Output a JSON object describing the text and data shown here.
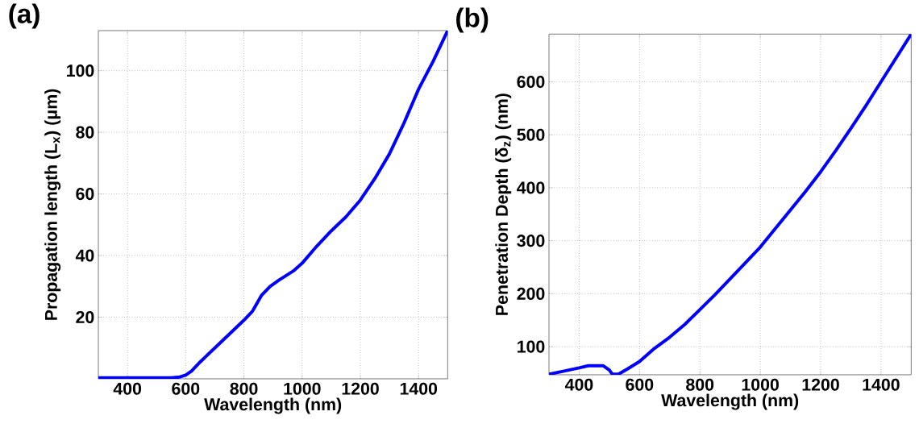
{
  "chart_data": [
    {
      "type": "line",
      "title": "(a)",
      "xlabel": "Wavelength (nm)",
      "ylabel": "Propagation length (L$_{x}$) (μm)",
      "color": "#0000ff",
      "grid": true,
      "xlim": [
        300,
        1500
      ],
      "ylim": [
        0,
        113
      ],
      "xticks": [
        400,
        600,
        800,
        1000,
        1200,
        1400
      ],
      "yticks": [
        20,
        40,
        60,
        80,
        100
      ],
      "x": [
        300,
        400,
        500,
        550,
        580,
        600,
        620,
        650,
        700,
        750,
        800,
        830,
        860,
        890,
        920,
        970,
        1000,
        1050,
        1100,
        1150,
        1200,
        1250,
        1300,
        1350,
        1400,
        1450,
        1500
      ],
      "values": [
        0.3,
        0.3,
        0.3,
        0.3,
        0.6,
        1.2,
        2.5,
        5.5,
        10,
        14.5,
        19,
        22,
        27,
        30,
        32,
        35,
        37.5,
        43,
        48,
        52.5,
        58,
        65,
        73,
        83,
        94,
        103,
        113
      ]
    },
    {
      "type": "line",
      "title": "(b)",
      "xlabel": "Wavelength (nm)",
      "ylabel": "Penetration Depth (δ$_{z}$) (nm)",
      "color": "#0000ff",
      "grid": true,
      "xlim": [
        300,
        1500
      ],
      "ylim": [
        47,
        690
      ],
      "xticks": [
        400,
        600,
        800,
        1000,
        1200,
        1400
      ],
      "yticks": [
        100,
        200,
        300,
        400,
        500,
        600
      ],
      "x": [
        300,
        350,
        400,
        430,
        480,
        500,
        510,
        530,
        560,
        600,
        650,
        700,
        750,
        800,
        850,
        900,
        950,
        1000,
        1050,
        1100,
        1150,
        1200,
        1250,
        1300,
        1350,
        1400,
        1450,
        1500
      ],
      "values": [
        48,
        54,
        60,
        64,
        64,
        56,
        48,
        48,
        58,
        72,
        97,
        118,
        142,
        170,
        198,
        228,
        258,
        288,
        323,
        358,
        393,
        430,
        470,
        512,
        555,
        600,
        645,
        690
      ]
    }
  ]
}
